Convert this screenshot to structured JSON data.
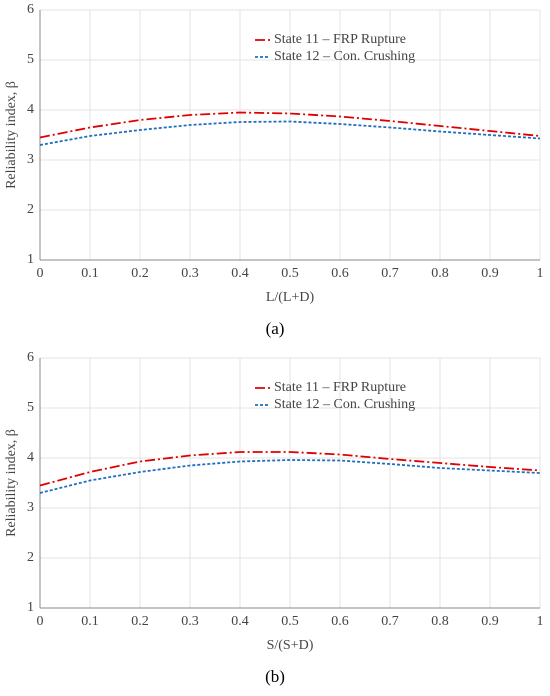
{
  "chart_data": [
    {
      "type": "line",
      "caption": "(a)",
      "xlabel": "L/(L+D)",
      "ylabel": "Reliability index, β",
      "x": [
        0,
        0.1,
        0.2,
        0.3,
        0.4,
        0.5,
        0.6,
        0.7,
        0.8,
        0.9,
        1
      ],
      "series": [
        {
          "name": "State 11 – FRP Rupture",
          "color": "#e00000",
          "style": "dashdot",
          "values": [
            3.45,
            3.65,
            3.8,
            3.9,
            3.95,
            3.93,
            3.87,
            3.78,
            3.68,
            3.58,
            3.48
          ]
        },
        {
          "name": "State 12 – Con. Crushing",
          "color": "#1f6fbf",
          "style": "dotted",
          "values": [
            3.3,
            3.48,
            3.6,
            3.7,
            3.76,
            3.77,
            3.72,
            3.65,
            3.57,
            3.5,
            3.43
          ]
        }
      ],
      "xlim": [
        0,
        1
      ],
      "xticks": [
        0,
        0.1,
        0.2,
        0.3,
        0.4,
        0.5,
        0.6,
        0.7,
        0.8,
        0.9,
        1
      ],
      "ylim": [
        1,
        6
      ],
      "yticks": [
        1,
        2,
        3,
        4,
        5,
        6
      ],
      "grid": true,
      "legend": "upper right"
    },
    {
      "type": "line",
      "caption": "(b)",
      "xlabel": "S/(S+D)",
      "ylabel": "Reliability index, β",
      "x": [
        0,
        0.1,
        0.2,
        0.3,
        0.4,
        0.5,
        0.6,
        0.7,
        0.8,
        0.9,
        1
      ],
      "series": [
        {
          "name": "State 11 – FRP Rupture",
          "color": "#e00000",
          "style": "dashdot",
          "values": [
            3.45,
            3.72,
            3.93,
            4.05,
            4.12,
            4.12,
            4.07,
            3.98,
            3.9,
            3.82,
            3.75
          ]
        },
        {
          "name": "State 12 – Con. Crushing",
          "color": "#1f6fbf",
          "style": "dotted",
          "values": [
            3.3,
            3.55,
            3.72,
            3.85,
            3.93,
            3.96,
            3.95,
            3.88,
            3.8,
            3.75,
            3.7
          ]
        }
      ],
      "xlim": [
        0,
        1
      ],
      "xticks": [
        0,
        0.1,
        0.2,
        0.3,
        0.4,
        0.5,
        0.6,
        0.7,
        0.8,
        0.9,
        1
      ],
      "ylim": [
        1,
        6
      ],
      "yticks": [
        1,
        2,
        3,
        4,
        5,
        6
      ],
      "grid": true,
      "legend": "upper right"
    }
  ]
}
